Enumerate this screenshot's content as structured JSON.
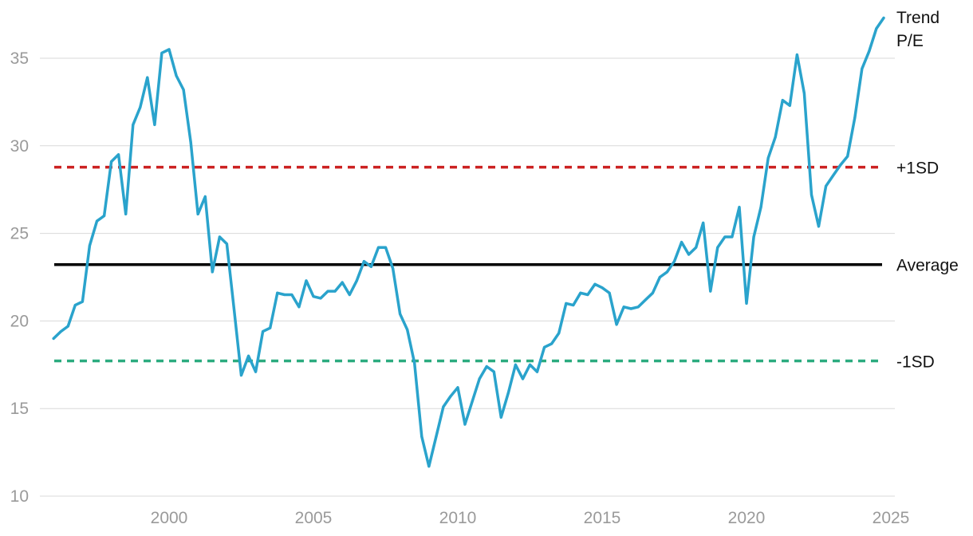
{
  "chart_data": {
    "type": "line",
    "title": "",
    "xlabel": "",
    "ylabel": "",
    "xlim": [
      1995.6,
      2025
    ],
    "ylim": [
      10,
      37.5
    ],
    "x_ticks": [
      2000,
      2005,
      2010,
      2015,
      2020,
      2025
    ],
    "y_ticks": [
      10,
      15,
      20,
      25,
      30,
      35
    ],
    "grid": "horizontal",
    "series": [
      {
        "name": "Trend P/E",
        "color": "#2aa3cc",
        "x": [
          1996.0,
          1996.25,
          1996.5,
          1996.75,
          1997.0,
          1997.25,
          1997.5,
          1997.75,
          1998.0,
          1998.25,
          1998.5,
          1998.75,
          1999.0,
          1999.25,
          1999.5,
          1999.75,
          2000.0,
          2000.25,
          2000.5,
          2000.75,
          2001.0,
          2001.25,
          2001.5,
          2001.75,
          2002.0,
          2002.25,
          2002.5,
          2002.75,
          2003.0,
          2003.25,
          2003.5,
          2003.75,
          2004.0,
          2004.25,
          2004.5,
          2004.75,
          2005.0,
          2005.25,
          2005.5,
          2005.75,
          2006.0,
          2006.25,
          2006.5,
          2006.75,
          2007.0,
          2007.25,
          2007.5,
          2007.75,
          2008.0,
          2008.25,
          2008.5,
          2008.75,
          2009.0,
          2009.25,
          2009.5,
          2009.75,
          2010.0,
          2010.25,
          2010.5,
          2010.75,
          2011.0,
          2011.25,
          2011.5,
          2011.75,
          2012.0,
          2012.25,
          2012.5,
          2012.75,
          2013.0,
          2013.25,
          2013.5,
          2013.75,
          2014.0,
          2014.25,
          2014.5,
          2014.75,
          2015.0,
          2015.25,
          2015.5,
          2015.75,
          2016.0,
          2016.25,
          2016.5,
          2016.75,
          2017.0,
          2017.25,
          2017.5,
          2017.75,
          2018.0,
          2018.25,
          2018.5,
          2018.75,
          2019.0,
          2019.25,
          2019.5,
          2019.75,
          2020.0,
          2020.25,
          2020.5,
          2020.75,
          2021.0,
          2021.25,
          2021.5,
          2021.75,
          2022.0,
          2022.25,
          2022.5,
          2022.75,
          2023.0,
          2023.25,
          2023.5,
          2023.75,
          2024.0,
          2024.25,
          2024.5,
          2024.75
        ],
        "values": [
          19.0,
          19.4,
          19.7,
          20.9,
          21.1,
          24.3,
          25.7,
          26.0,
          29.1,
          29.5,
          26.1,
          31.2,
          32.2,
          33.9,
          31.2,
          35.3,
          35.5,
          34.0,
          33.2,
          30.2,
          26.1,
          27.1,
          22.8,
          24.8,
          24.4,
          20.7,
          16.9,
          18.0,
          17.1,
          19.4,
          19.6,
          21.6,
          21.5,
          21.5,
          20.8,
          22.3,
          21.4,
          21.3,
          21.7,
          21.7,
          22.2,
          21.5,
          22.3,
          23.4,
          23.1,
          24.2,
          24.2,
          23.0,
          20.4,
          19.5,
          17.6,
          13.4,
          11.7,
          13.4,
          15.1,
          15.7,
          16.2,
          14.1,
          15.4,
          16.7,
          17.4,
          17.1,
          14.5,
          15.9,
          17.5,
          16.7,
          17.5,
          17.1,
          18.5,
          18.7,
          19.3,
          21.0,
          20.9,
          21.6,
          21.5,
          22.1,
          21.9,
          21.6,
          19.8,
          20.8,
          20.7,
          20.8,
          21.2,
          21.6,
          22.5,
          22.8,
          23.4,
          24.5,
          23.8,
          24.2,
          25.6,
          21.7,
          24.2,
          24.8,
          24.8,
          26.5,
          21.0,
          24.8,
          26.5,
          29.3,
          30.5,
          32.6,
          32.3,
          35.2,
          33.0,
          27.2,
          25.4,
          27.7,
          28.3,
          28.9,
          29.4,
          31.6,
          34.4,
          35.4,
          36.7,
          37.3
        ]
      }
    ],
    "reference_lines": [
      {
        "name": "+1SD",
        "value": 28.78,
        "color": "#cc2222",
        "style": "dashed"
      },
      {
        "name": "Average",
        "value": 23.22,
        "color": "#000000",
        "style": "solid"
      },
      {
        "name": "-1SD",
        "value": 17.72,
        "color": "#2bab7f",
        "style": "dashed"
      }
    ],
    "series_label_lines": [
      "Trend",
      "P/E"
    ]
  }
}
